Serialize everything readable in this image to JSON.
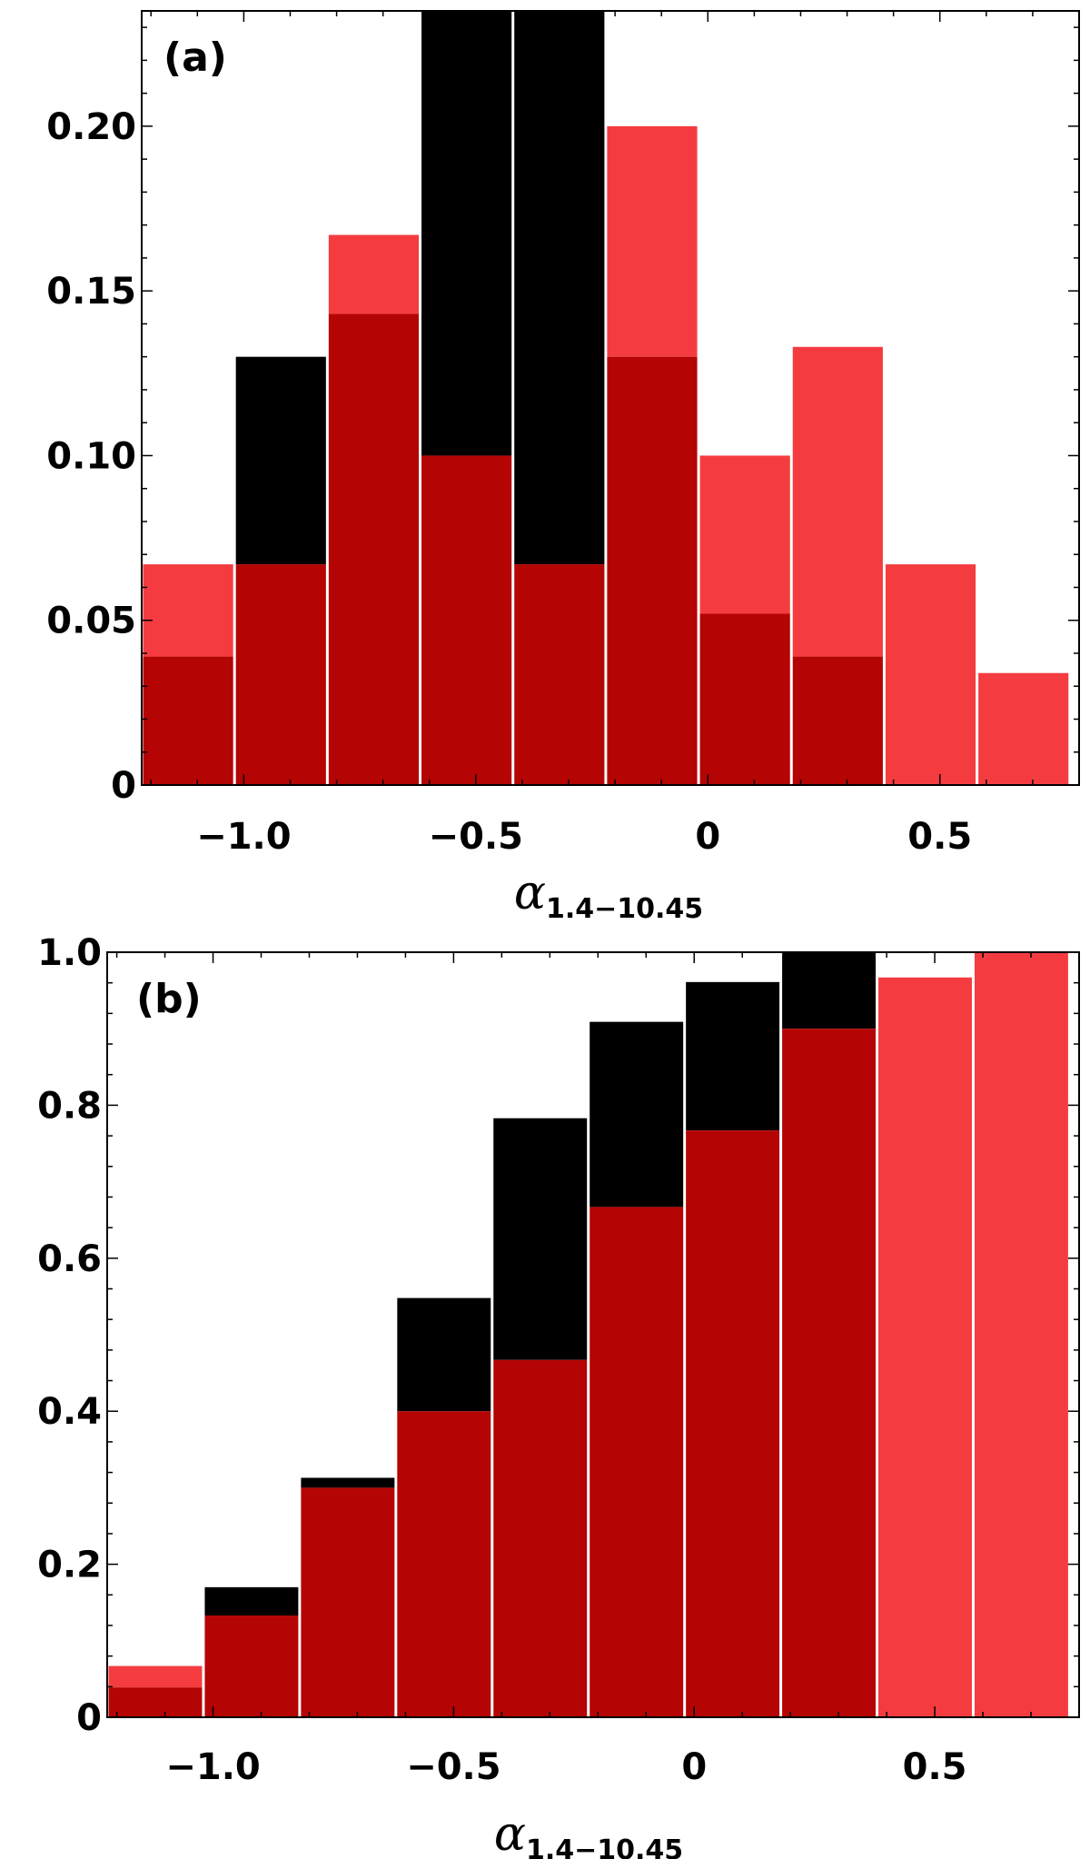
{
  "chart_data": [
    {
      "type": "bar",
      "panel_label": "(a)",
      "xlabel_symbol": "α",
      "xlabel_subscript": "1.4−10.45",
      "ylabel": "",
      "xlim": [
        -1.22,
        0.8
      ],
      "ylim": [
        0,
        0.235
      ],
      "x_ticks": [
        {
          "value": -1.0,
          "label": "−1.0"
        },
        {
          "value": -0.5,
          "label": "−0.5"
        },
        {
          "value": 0,
          "label": "0"
        },
        {
          "value": 0.5,
          "label": "0.5"
        }
      ],
      "y_ticks": [
        {
          "value": 0,
          "label": "0"
        },
        {
          "value": 0.05,
          "label": "0.05"
        },
        {
          "value": 0.1,
          "label": "0.10"
        },
        {
          "value": 0.15,
          "label": "0.15"
        },
        {
          "value": 0.2,
          "label": "0.20"
        }
      ],
      "bins": [
        {
          "x0": -1.22,
          "x1": -1.02
        },
        {
          "x0": -1.02,
          "x1": -0.82
        },
        {
          "x0": -0.82,
          "x1": -0.62
        },
        {
          "x0": -0.62,
          "x1": -0.42
        },
        {
          "x0": -0.42,
          "x1": -0.22
        },
        {
          "x0": -0.22,
          "x1": -0.02
        },
        {
          "x0": -0.02,
          "x1": 0.18
        },
        {
          "x0": 0.18,
          "x1": 0.38
        },
        {
          "x0": 0.38,
          "x1": 0.58
        },
        {
          "x0": 0.58,
          "x1": 0.78
        }
      ],
      "series": [
        {
          "color": "#f43c40",
          "values": [
            0.067,
            0.067,
            0.167,
            0.1,
            0.067,
            0.2,
            0.1,
            0.133,
            0.067,
            0.034
          ]
        },
        {
          "color": "#000000",
          "values": [
            0.039,
            0.13,
            0.143,
            0.235,
            0.235,
            0.13,
            0.052,
            0.039,
            0,
            0
          ]
        }
      ],
      "overlap_color": "#b40404",
      "grid": false
    },
    {
      "type": "bar",
      "panel_label": "(b)",
      "xlabel_symbol": "α",
      "xlabel_subscript": "1.4−10.45",
      "ylabel": "",
      "xlim": [
        -1.22,
        0.8
      ],
      "ylim": [
        0,
        1.0
      ],
      "x_ticks": [
        {
          "value": -1.0,
          "label": "−1.0"
        },
        {
          "value": -0.5,
          "label": "−0.5"
        },
        {
          "value": 0,
          "label": "0"
        },
        {
          "value": 0.5,
          "label": "0.5"
        }
      ],
      "y_ticks": [
        {
          "value": 0,
          "label": "0"
        },
        {
          "value": 0.2,
          "label": "0.2"
        },
        {
          "value": 0.4,
          "label": "0.4"
        },
        {
          "value": 0.6,
          "label": "0.6"
        },
        {
          "value": 0.8,
          "label": "0.8"
        },
        {
          "value": 1.0,
          "label": "1.0"
        }
      ],
      "bins": [
        {
          "x0": -1.22,
          "x1": -1.02
        },
        {
          "x0": -1.02,
          "x1": -0.82
        },
        {
          "x0": -0.82,
          "x1": -0.62
        },
        {
          "x0": -0.62,
          "x1": -0.42
        },
        {
          "x0": -0.42,
          "x1": -0.22
        },
        {
          "x0": -0.22,
          "x1": -0.02
        },
        {
          "x0": -0.02,
          "x1": 0.18
        },
        {
          "x0": 0.18,
          "x1": 0.38
        },
        {
          "x0": 0.38,
          "x1": 0.58
        },
        {
          "x0": 0.58,
          "x1": 0.78
        }
      ],
      "series": [
        {
          "color": "#f43c40",
          "values": [
            0.067,
            0.133,
            0.3,
            0.4,
            0.467,
            0.667,
            0.767,
            0.9,
            0.967,
            1.0
          ]
        },
        {
          "color": "#000000",
          "values": [
            0.039,
            0.17,
            0.313,
            0.548,
            0.783,
            0.909,
            0.961,
            1.0,
            0,
            0
          ]
        }
      ],
      "overlap_color": "#b40404",
      "grid": false
    }
  ]
}
